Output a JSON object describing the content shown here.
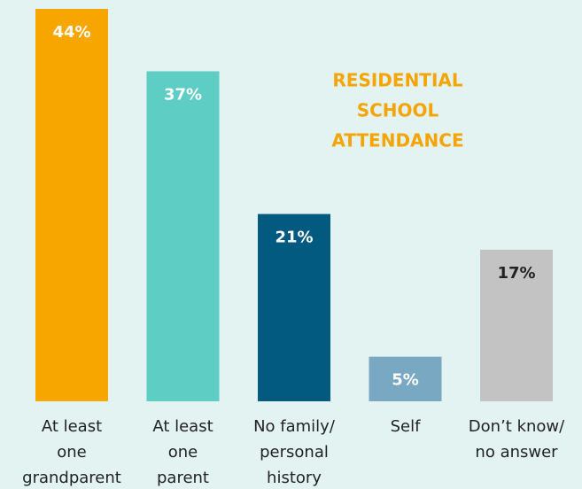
{
  "chart_data": {
    "type": "bar",
    "title": [
      "RESIDENTIAL",
      "SCHOOL",
      "ATTENDANCE"
    ],
    "title_color": "#f5a400",
    "categories": [
      [
        "At least",
        "one",
        "grandparent"
      ],
      [
        "At least",
        "one",
        "parent"
      ],
      [
        "No family/",
        "personal",
        "history"
      ],
      [
        "Self"
      ],
      [
        "Don’t know/",
        "no answer"
      ]
    ],
    "values": [
      44,
      37,
      21,
      5,
      17
    ],
    "value_labels": [
      "44%",
      "37%",
      "21%",
      "5%",
      "17%"
    ],
    "colors": [
      "#f7a600",
      "#5ecdc3",
      "#035a80",
      "#79a8c3",
      "#c3c3c4"
    ]
  }
}
